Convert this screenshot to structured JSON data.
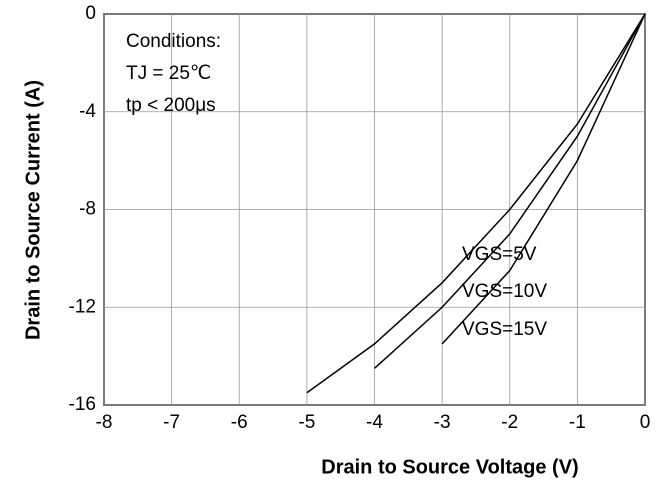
{
  "chart_data": {
    "type": "line",
    "x_label": "Drain to Source Voltage (V)",
    "y_label": "Drain to Source Current (A)",
    "annotations": [
      "Conditions:",
      "TJ = 25℃",
      "tp < 200μs"
    ],
    "x": [
      -8,
      -7,
      -6,
      -5,
      -4,
      -3,
      -2,
      -1,
      0
    ],
    "series": [
      {
        "name": "VGS=15V",
        "color": "#000000",
        "values": [
          null,
          null,
          null,
          -15.5,
          -13.5,
          -11,
          -8,
          -4.5,
          0
        ]
      },
      {
        "name": "VGS=10V",
        "color": "#000000",
        "values": [
          null,
          null,
          null,
          null,
          -14.5,
          -12,
          -9,
          -5,
          0
        ]
      },
      {
        "name": "VGS=5V",
        "color": "#000000",
        "values": [
          null,
          null,
          null,
          null,
          null,
          -13.5,
          -10.5,
          -6,
          0
        ]
      }
    ],
    "xlim": [
      -8,
      0
    ],
    "xticks": [
      -8,
      -7,
      -6,
      -5,
      -4,
      -3,
      -2,
      -1,
      0
    ],
    "ylim": [
      -16,
      0
    ],
    "yticks": [
      -16,
      -12,
      -8,
      -4,
      0
    ],
    "grid": true
  }
}
